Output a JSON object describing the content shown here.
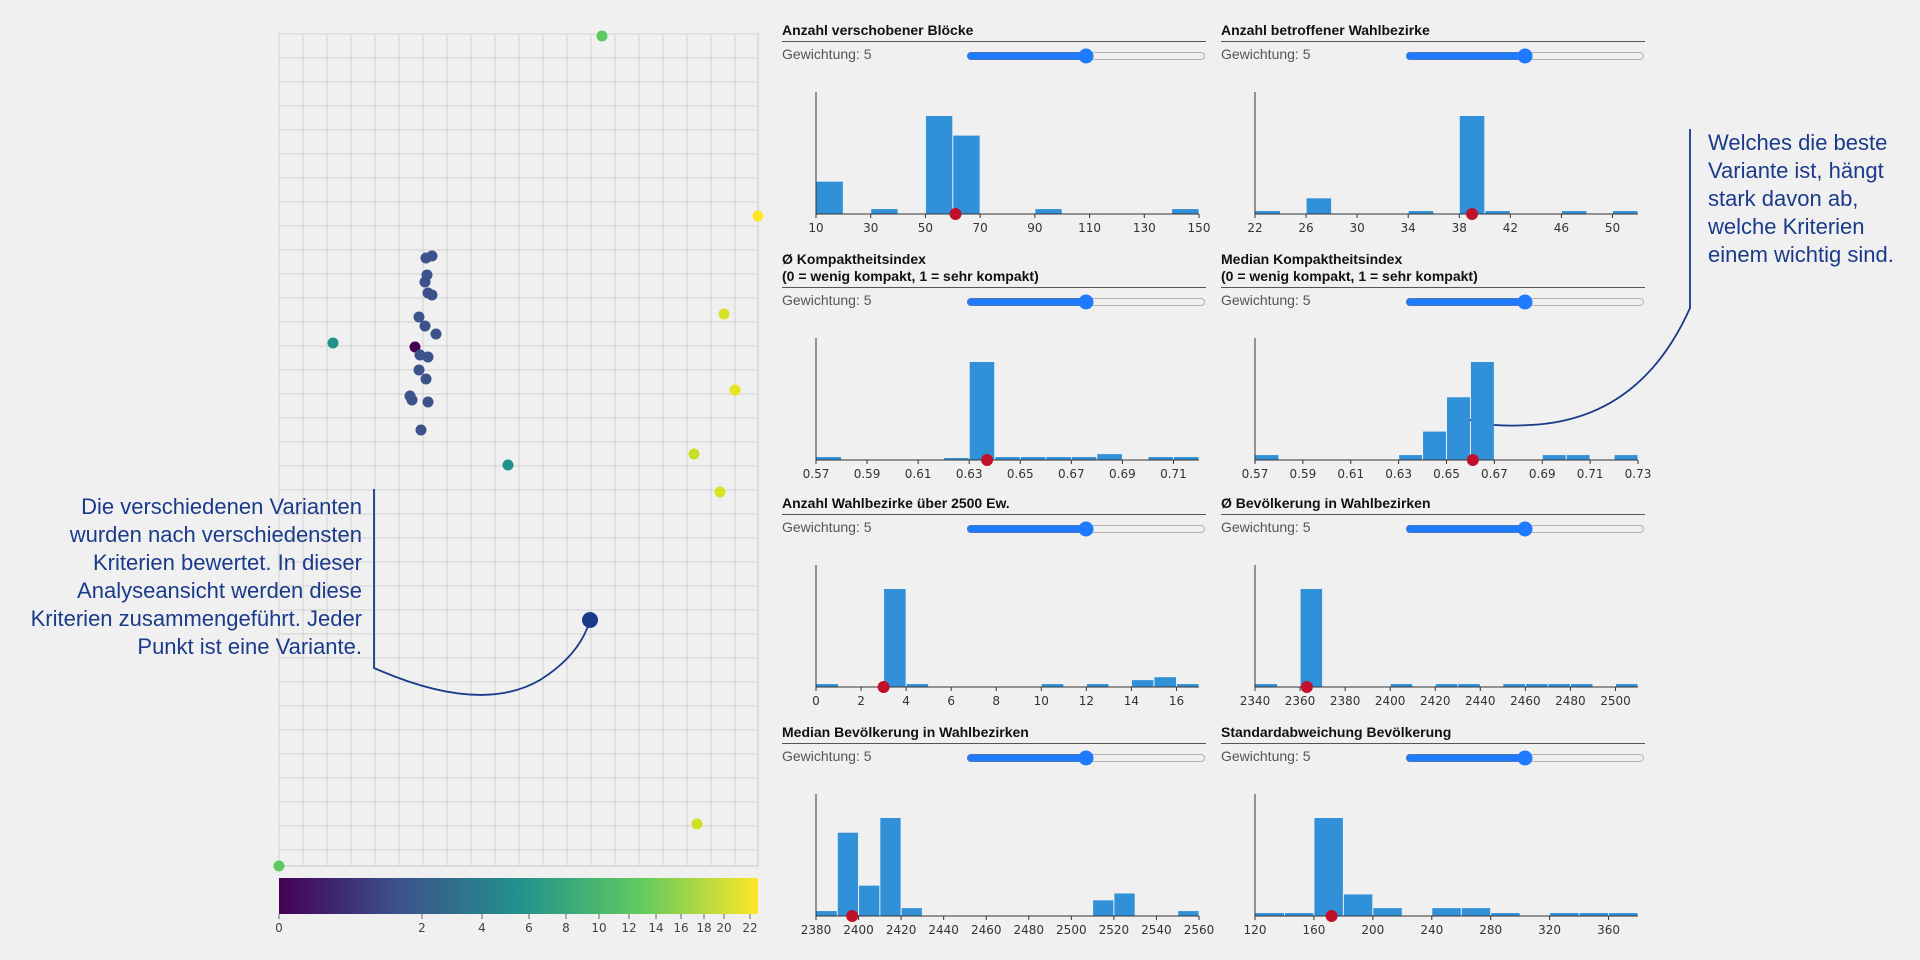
{
  "scatter": {
    "colorbar_ticks": [
      0,
      2,
      4,
      6,
      8,
      10,
      12,
      14,
      16,
      18,
      20,
      22
    ],
    "colorbar_colors": [
      "#440154",
      "#3b528b",
      "#21918c",
      "#5ec962",
      "#fde725"
    ],
    "marker_color": "#1a3a8a"
  },
  "annotations": {
    "left": "Die verschiedenen Varianten wurden nach verschiedensten Kriterien bewertet. In dieser Analyseansicht werden diese Kriterien zusammengeführt. Jeder Punkt ist eine Variante.",
    "right": "Welches die beste Variante ist, hängt stark davon ab, welche Kriterien einem wichtig sind."
  },
  "weight_prefix": "Gewichtung:",
  "bar_color": "#3090d8",
  "marker_color_red": "#c0102a",
  "chart_data": [
    {
      "type": "bar",
      "title": "Anzahl verschobener Blöcke",
      "weight": 5,
      "xlim": [
        10,
        150
      ],
      "x_ticks": [
        "10",
        "30",
        "50",
        "70",
        "90",
        "110",
        "130",
        "150"
      ],
      "bins": [
        {
          "x0": 10,
          "x1": 20,
          "count": 0.33
        },
        {
          "x0": 30,
          "x1": 40,
          "count": 0.05
        },
        {
          "x0": 50,
          "x1": 60,
          "count": 1.0
        },
        {
          "x0": 60,
          "x1": 70,
          "count": 0.8
        },
        {
          "x0": 90,
          "x1": 100,
          "count": 0.05
        },
        {
          "x0": 140,
          "x1": 150,
          "count": 0.05
        }
      ],
      "marker": 61
    },
    {
      "type": "bar",
      "title": "Anzahl betroffener Wahlbezirke",
      "weight": 5,
      "xlim": [
        22,
        52
      ],
      "x_ticks": [
        "22",
        "26",
        "30",
        "34",
        "38",
        "42",
        "46",
        "50"
      ],
      "bins": [
        {
          "x0": 22,
          "x1": 24,
          "count": 0.03
        },
        {
          "x0": 26,
          "x1": 28,
          "count": 0.16
        },
        {
          "x0": 34,
          "x1": 36,
          "count": 0.03
        },
        {
          "x0": 38,
          "x1": 40,
          "count": 1.0
        },
        {
          "x0": 40,
          "x1": 42,
          "count": 0.03
        },
        {
          "x0": 46,
          "x1": 48,
          "count": 0.03
        },
        {
          "x0": 50,
          "x1": 52,
          "count": 0.03
        }
      ],
      "marker": 39
    },
    {
      "type": "bar",
      "title": "Ø Kompaktheitsindex",
      "subtitle": "(0 = wenig kompakt, 1 = sehr kompakt)",
      "weight": 5,
      "xlim": [
        0.57,
        0.72
      ],
      "x_ticks": [
        "0.57",
        "0.59",
        "0.61",
        "0.63",
        "0.65",
        "0.67",
        "0.69",
        "0.71"
      ],
      "bins": [
        {
          "x0": 0.57,
          "x1": 0.58,
          "count": 0.03
        },
        {
          "x0": 0.62,
          "x1": 0.63,
          "count": 0.02
        },
        {
          "x0": 0.63,
          "x1": 0.64,
          "count": 1.0
        },
        {
          "x0": 0.64,
          "x1": 0.65,
          "count": 0.03
        },
        {
          "x0": 0.65,
          "x1": 0.66,
          "count": 0.03
        },
        {
          "x0": 0.66,
          "x1": 0.67,
          "count": 0.03
        },
        {
          "x0": 0.67,
          "x1": 0.68,
          "count": 0.03
        },
        {
          "x0": 0.68,
          "x1": 0.69,
          "count": 0.06
        },
        {
          "x0": 0.7,
          "x1": 0.71,
          "count": 0.03
        },
        {
          "x0": 0.71,
          "x1": 0.72,
          "count": 0.03
        }
      ],
      "marker": 0.637
    },
    {
      "type": "bar",
      "title": "Median Kompaktheitsindex",
      "subtitle": "(0 = wenig kompakt, 1 = sehr kompakt)",
      "weight": 5,
      "xlim": [
        0.57,
        0.73
      ],
      "x_ticks": [
        "0.57",
        "0.59",
        "0.61",
        "0.63",
        "0.65",
        "0.67",
        "0.69",
        "0.71",
        "0.73"
      ],
      "bins": [
        {
          "x0": 0.57,
          "x1": 0.58,
          "count": 0.05
        },
        {
          "x0": 0.63,
          "x1": 0.64,
          "count": 0.05
        },
        {
          "x0": 0.64,
          "x1": 0.65,
          "count": 0.29
        },
        {
          "x0": 0.65,
          "x1": 0.66,
          "count": 0.64
        },
        {
          "x0": 0.66,
          "x1": 0.67,
          "count": 1.0
        },
        {
          "x0": 0.69,
          "x1": 0.7,
          "count": 0.05
        },
        {
          "x0": 0.7,
          "x1": 0.71,
          "count": 0.05
        },
        {
          "x0": 0.72,
          "x1": 0.73,
          "count": 0.05
        }
      ],
      "marker": 0.661
    },
    {
      "type": "bar",
      "title": "Anzahl Wahlbezirke über 2500 Ew.",
      "weight": 5,
      "xlim": [
        0,
        17
      ],
      "x_ticks": [
        "0",
        "2",
        "4",
        "6",
        "8",
        "10",
        "12",
        "14",
        "16"
      ],
      "bins": [
        {
          "x0": 0,
          "x1": 1,
          "count": 0.03
        },
        {
          "x0": 3,
          "x1": 4,
          "count": 1.0
        },
        {
          "x0": 4,
          "x1": 5,
          "count": 0.03
        },
        {
          "x0": 10,
          "x1": 11,
          "count": 0.03
        },
        {
          "x0": 12,
          "x1": 13,
          "count": 0.03
        },
        {
          "x0": 14,
          "x1": 15,
          "count": 0.07
        },
        {
          "x0": 15,
          "x1": 16,
          "count": 0.1
        },
        {
          "x0": 16,
          "x1": 17,
          "count": 0.03
        }
      ],
      "marker": 3
    },
    {
      "type": "bar",
      "title": "Ø Bevölkerung in Wahlbezirken",
      "weight": 5,
      "xlim": [
        2340,
        2510
      ],
      "x_ticks": [
        "2340",
        "2360",
        "2380",
        "2400",
        "2420",
        "2440",
        "2460",
        "2480",
        "2500"
      ],
      "bins": [
        {
          "x0": 2340,
          "x1": 2350,
          "count": 0.03
        },
        {
          "x0": 2360,
          "x1": 2370,
          "count": 1.0
        },
        {
          "x0": 2400,
          "x1": 2410,
          "count": 0.03
        },
        {
          "x0": 2420,
          "x1": 2430,
          "count": 0.03
        },
        {
          "x0": 2430,
          "x1": 2440,
          "count": 0.03
        },
        {
          "x0": 2450,
          "x1": 2460,
          "count": 0.03
        },
        {
          "x0": 2460,
          "x1": 2470,
          "count": 0.03
        },
        {
          "x0": 2470,
          "x1": 2480,
          "count": 0.03
        },
        {
          "x0": 2480,
          "x1": 2490,
          "count": 0.03
        },
        {
          "x0": 2500,
          "x1": 2510,
          "count": 0.03
        }
      ],
      "marker": 2363
    },
    {
      "type": "bar",
      "title": "Median Bevölkerung in Wahlbezirken",
      "weight": 5,
      "xlim": [
        2380,
        2560
      ],
      "x_ticks": [
        "2380",
        "2400",
        "2420",
        "2440",
        "2460",
        "2480",
        "2500",
        "2520",
        "2540",
        "2560"
      ],
      "bins": [
        {
          "x0": 2380,
          "x1": 2390,
          "count": 0.05
        },
        {
          "x0": 2390,
          "x1": 2400,
          "count": 0.85
        },
        {
          "x0": 2400,
          "x1": 2410,
          "count": 0.31
        },
        {
          "x0": 2410,
          "x1": 2420,
          "count": 1.0
        },
        {
          "x0": 2420,
          "x1": 2430,
          "count": 0.08
        },
        {
          "x0": 2510,
          "x1": 2520,
          "count": 0.16
        },
        {
          "x0": 2520,
          "x1": 2530,
          "count": 0.23
        },
        {
          "x0": 2550,
          "x1": 2560,
          "count": 0.05
        }
      ],
      "marker": 2397
    },
    {
      "type": "bar",
      "title": "Standardabweichung Bevölkerung",
      "weight": 5,
      "xlim": [
        120,
        380
      ],
      "x_ticks": [
        "120",
        "160",
        "200",
        "240",
        "280",
        "320",
        "360"
      ],
      "bins": [
        {
          "x0": 120,
          "x1": 140,
          "count": 0.03
        },
        {
          "x0": 140,
          "x1": 160,
          "count": 0.03
        },
        {
          "x0": 160,
          "x1": 180,
          "count": 1.0
        },
        {
          "x0": 180,
          "x1": 200,
          "count": 0.22
        },
        {
          "x0": 200,
          "x1": 220,
          "count": 0.08
        },
        {
          "x0": 240,
          "x1": 260,
          "count": 0.08
        },
        {
          "x0": 260,
          "x1": 280,
          "count": 0.08
        },
        {
          "x0": 280,
          "x1": 300,
          "count": 0.03
        },
        {
          "x0": 320,
          "x1": 340,
          "count": 0.03
        },
        {
          "x0": 340,
          "x1": 360,
          "count": 0.03
        },
        {
          "x0": 360,
          "x1": 380,
          "count": 0.03
        }
      ],
      "marker": 172
    }
  ]
}
